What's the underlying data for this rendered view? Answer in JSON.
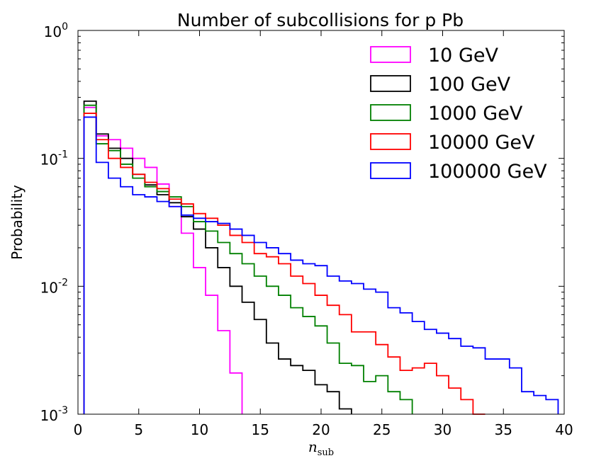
{
  "chart_data": {
    "type": "line",
    "title": "Number of subcollisions for p Pb",
    "xlabel": "n",
    "xlabel_sub": "sub",
    "ylabel": "Probability",
    "xlim": [
      0,
      40
    ],
    "ylim": [
      0.001,
      1
    ],
    "yscale": "log",
    "grid": false,
    "legend_position": "top-right",
    "x_ticks": [
      0,
      5,
      10,
      15,
      20,
      25,
      30,
      35,
      40
    ],
    "x_tick_labels": [
      "0",
      "5",
      "10",
      "15",
      "20",
      "25",
      "30",
      "35",
      "40"
    ],
    "y_ticks": [
      1,
      0.1,
      0.01,
      0.001
    ],
    "y_tick_labels": [
      {
        "base": "10",
        "exp": "0"
      },
      {
        "base": "10",
        "exp": "-1"
      },
      {
        "base": "10",
        "exp": "-2"
      },
      {
        "base": "10",
        "exp": "-3"
      }
    ],
    "bin_edges": [
      0.5,
      1.5,
      2.5,
      3.5,
      4.5,
      5.5,
      6.5,
      7.5,
      8.5,
      9.5,
      10.5,
      11.5,
      12.5,
      13.5,
      14.5,
      15.5,
      16.5,
      17.5,
      18.5,
      19.5,
      20.5,
      21.5,
      22.5,
      23.5,
      24.5,
      25.5,
      26.5,
      27.5,
      28.5,
      29.5,
      30.5,
      31.5,
      32.5,
      33.5,
      34.5,
      35.5,
      36.5,
      37.5,
      38.5,
      39.5
    ],
    "series": [
      {
        "name": "10 GeV",
        "color": "#ff00ff",
        "values": [
          0.25,
          0.15,
          0.14,
          0.12,
          0.1,
          0.085,
          0.063,
          0.042,
          0.026,
          0.014,
          0.0085,
          0.0045,
          0.0021
        ]
      },
      {
        "name": "100 GeV",
        "color": "#000000",
        "values": [
          0.28,
          0.155,
          0.12,
          0.1,
          0.075,
          0.062,
          0.052,
          0.045,
          0.035,
          0.028,
          0.02,
          0.014,
          0.01,
          0.0075,
          0.0055,
          0.0036,
          0.0027,
          0.0024,
          0.0022,
          0.0017,
          0.0015,
          0.0011
        ]
      },
      {
        "name": "1000 GeV",
        "color": "#008000",
        "values": [
          0.26,
          0.13,
          0.115,
          0.09,
          0.07,
          0.06,
          0.055,
          0.05,
          0.042,
          0.032,
          0.027,
          0.022,
          0.018,
          0.015,
          0.012,
          0.01,
          0.0085,
          0.0068,
          0.0058,
          0.0049,
          0.0036,
          0.0025,
          0.0024,
          0.0018,
          0.002,
          0.0015,
          0.0013
        ]
      },
      {
        "name": "10000 GeV",
        "color": "#ff0000",
        "values": [
          0.225,
          0.14,
          0.1,
          0.085,
          0.075,
          0.065,
          0.058,
          0.048,
          0.044,
          0.037,
          0.034,
          0.03,
          0.025,
          0.022,
          0.018,
          0.017,
          0.015,
          0.012,
          0.0105,
          0.0085,
          0.0071,
          0.006,
          0.0044,
          0.0044,
          0.0035,
          0.0028,
          0.0022,
          0.0023,
          0.0025,
          0.002,
          0.0016,
          0.0013,
          0.001
        ]
      },
      {
        "name": "100000 GeV",
        "color": "#0000ff",
        "values": [
          0.21,
          0.093,
          0.07,
          0.06,
          0.052,
          0.05,
          0.046,
          0.042,
          0.036,
          0.034,
          0.032,
          0.031,
          0.028,
          0.025,
          0.022,
          0.02,
          0.018,
          0.016,
          0.015,
          0.0145,
          0.012,
          0.011,
          0.0105,
          0.0095,
          0.009,
          0.0068,
          0.0062,
          0.0053,
          0.0046,
          0.0043,
          0.0039,
          0.0034,
          0.0033,
          0.0027,
          0.0027,
          0.0023,
          0.0015,
          0.0014,
          0.0013
        ]
      }
    ]
  }
}
